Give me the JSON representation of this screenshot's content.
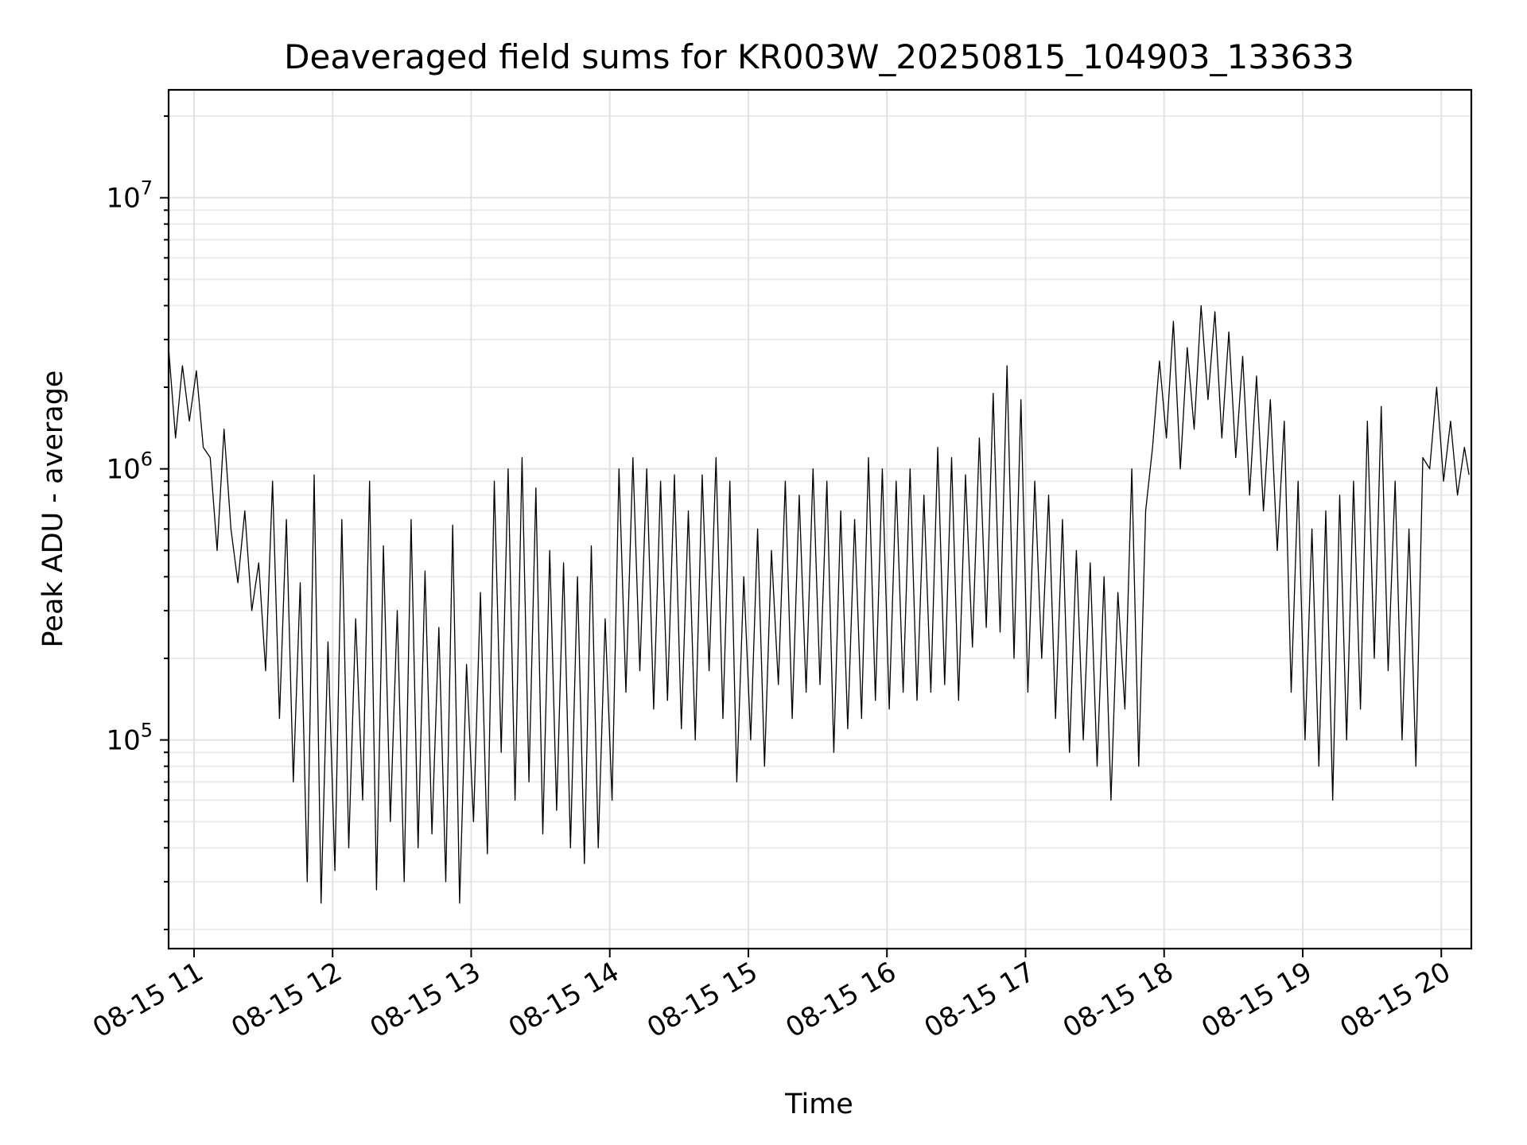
{
  "chart_data": {
    "type": "line",
    "title": "Deaveraged field sums for KR003W_20250815_104903_133633",
    "xlabel": "Time",
    "ylabel": "Peak ADU - average",
    "y_scale": "log",
    "ylim": [
      17000,
      25000000
    ],
    "xlim": [
      "2025-08-15T10:49:00",
      "2025-08-15T20:13:00"
    ],
    "grid": true,
    "x_ticks": [
      {
        "t": "2025-08-15T11:00",
        "label": "08-15 11"
      },
      {
        "t": "2025-08-15T12:00",
        "label": "08-15 12"
      },
      {
        "t": "2025-08-15T13:00",
        "label": "08-15 13"
      },
      {
        "t": "2025-08-15T14:00",
        "label": "08-15 14"
      },
      {
        "t": "2025-08-15T15:00",
        "label": "08-15 15"
      },
      {
        "t": "2025-08-15T16:00",
        "label": "08-15 16"
      },
      {
        "t": "2025-08-15T17:00",
        "label": "08-15 17"
      },
      {
        "t": "2025-08-15T18:00",
        "label": "08-15 18"
      },
      {
        "t": "2025-08-15T19:00",
        "label": "08-15 19"
      },
      {
        "t": "2025-08-15T20:00",
        "label": "08-15 20"
      }
    ],
    "y_ticks": [
      {
        "value": 100000,
        "base": "10",
        "exp": "5"
      },
      {
        "value": 1000000,
        "base": "10",
        "exp": "6"
      },
      {
        "value": 10000000,
        "base": "10",
        "exp": "7"
      }
    ],
    "series": [
      {
        "color": "#000000",
        "x": [
          "2025-08-15T10:49",
          "2025-08-15T10:52",
          "2025-08-15T10:55",
          "2025-08-15T10:58",
          "2025-08-15T11:01",
          "2025-08-15T11:04",
          "2025-08-15T11:07",
          "2025-08-15T11:10",
          "2025-08-15T11:13",
          "2025-08-15T11:16",
          "2025-08-15T11:19",
          "2025-08-15T11:22",
          "2025-08-15T11:25",
          "2025-08-15T11:28",
          "2025-08-15T11:31",
          "2025-08-15T11:34",
          "2025-08-15T11:37",
          "2025-08-15T11:40",
          "2025-08-15T11:43",
          "2025-08-15T11:46",
          "2025-08-15T11:49",
          "2025-08-15T11:52",
          "2025-08-15T11:55",
          "2025-08-15T11:58",
          "2025-08-15T12:01",
          "2025-08-15T12:04",
          "2025-08-15T12:07",
          "2025-08-15T12:10",
          "2025-08-15T12:13",
          "2025-08-15T12:16",
          "2025-08-15T12:19",
          "2025-08-15T12:22",
          "2025-08-15T12:25",
          "2025-08-15T12:28",
          "2025-08-15T12:31",
          "2025-08-15T12:34",
          "2025-08-15T12:37",
          "2025-08-15T12:40",
          "2025-08-15T12:43",
          "2025-08-15T12:46",
          "2025-08-15T12:49",
          "2025-08-15T12:52",
          "2025-08-15T12:55",
          "2025-08-15T12:58",
          "2025-08-15T13:01",
          "2025-08-15T13:04",
          "2025-08-15T13:07",
          "2025-08-15T13:10",
          "2025-08-15T13:13",
          "2025-08-15T13:16",
          "2025-08-15T13:19",
          "2025-08-15T13:22",
          "2025-08-15T13:25",
          "2025-08-15T13:28",
          "2025-08-15T13:31",
          "2025-08-15T13:34",
          "2025-08-15T13:37",
          "2025-08-15T13:40",
          "2025-08-15T13:43",
          "2025-08-15T13:46",
          "2025-08-15T13:49",
          "2025-08-15T13:52",
          "2025-08-15T13:55",
          "2025-08-15T13:58",
          "2025-08-15T14:01",
          "2025-08-15T14:04",
          "2025-08-15T14:07",
          "2025-08-15T14:10",
          "2025-08-15T14:13",
          "2025-08-15T14:16",
          "2025-08-15T14:19",
          "2025-08-15T14:22",
          "2025-08-15T14:25",
          "2025-08-15T14:28",
          "2025-08-15T14:31",
          "2025-08-15T14:34",
          "2025-08-15T14:37",
          "2025-08-15T14:40",
          "2025-08-15T14:43",
          "2025-08-15T14:46",
          "2025-08-15T14:49",
          "2025-08-15T14:52",
          "2025-08-15T14:55",
          "2025-08-15T14:58",
          "2025-08-15T15:01",
          "2025-08-15T15:04",
          "2025-08-15T15:07",
          "2025-08-15T15:10",
          "2025-08-15T15:13",
          "2025-08-15T15:16",
          "2025-08-15T15:19",
          "2025-08-15T15:22",
          "2025-08-15T15:25",
          "2025-08-15T15:28",
          "2025-08-15T15:31",
          "2025-08-15T15:34",
          "2025-08-15T15:37",
          "2025-08-15T15:40",
          "2025-08-15T15:43",
          "2025-08-15T15:46",
          "2025-08-15T15:49",
          "2025-08-15T15:52",
          "2025-08-15T15:55",
          "2025-08-15T15:58",
          "2025-08-15T16:01",
          "2025-08-15T16:04",
          "2025-08-15T16:07",
          "2025-08-15T16:10",
          "2025-08-15T16:13",
          "2025-08-15T16:16",
          "2025-08-15T16:19",
          "2025-08-15T16:22",
          "2025-08-15T16:25",
          "2025-08-15T16:28",
          "2025-08-15T16:31",
          "2025-08-15T16:34",
          "2025-08-15T16:37",
          "2025-08-15T16:40",
          "2025-08-15T16:43",
          "2025-08-15T16:46",
          "2025-08-15T16:49",
          "2025-08-15T16:52",
          "2025-08-15T16:55",
          "2025-08-15T16:58",
          "2025-08-15T17:01",
          "2025-08-15T17:04",
          "2025-08-15T17:07",
          "2025-08-15T17:10",
          "2025-08-15T17:13",
          "2025-08-15T17:16",
          "2025-08-15T17:19",
          "2025-08-15T17:22",
          "2025-08-15T17:25",
          "2025-08-15T17:28",
          "2025-08-15T17:31",
          "2025-08-15T17:34",
          "2025-08-15T17:37",
          "2025-08-15T17:40",
          "2025-08-15T17:43",
          "2025-08-15T17:46",
          "2025-08-15T17:49",
          "2025-08-15T17:52",
          "2025-08-15T17:55",
          "2025-08-15T17:58",
          "2025-08-15T18:01",
          "2025-08-15T18:04",
          "2025-08-15T18:07",
          "2025-08-15T18:10",
          "2025-08-15T18:13",
          "2025-08-15T18:16",
          "2025-08-15T18:19",
          "2025-08-15T18:22",
          "2025-08-15T18:25",
          "2025-08-15T18:28",
          "2025-08-15T18:31",
          "2025-08-15T18:34",
          "2025-08-15T18:37",
          "2025-08-15T18:40",
          "2025-08-15T18:43",
          "2025-08-15T18:46",
          "2025-08-15T18:49",
          "2025-08-15T18:52",
          "2025-08-15T18:55",
          "2025-08-15T18:58",
          "2025-08-15T19:01",
          "2025-08-15T19:04",
          "2025-08-15T19:07",
          "2025-08-15T19:10",
          "2025-08-15T19:13",
          "2025-08-15T19:16",
          "2025-08-15T19:19",
          "2025-08-15T19:22",
          "2025-08-15T19:25",
          "2025-08-15T19:28",
          "2025-08-15T19:31",
          "2025-08-15T19:34",
          "2025-08-15T19:37",
          "2025-08-15T19:40",
          "2025-08-15T19:43",
          "2025-08-15T19:46",
          "2025-08-15T19:49",
          "2025-08-15T19:52",
          "2025-08-15T19:55",
          "2025-08-15T19:58",
          "2025-08-15T20:01",
          "2025-08-15T20:04",
          "2025-08-15T20:07",
          "2025-08-15T20:10",
          "2025-08-15T20:12"
        ],
        "y": [
          2800000,
          1300000,
          2400000,
          1500000,
          2300000,
          1200000,
          1100000,
          500000,
          1400000,
          600000,
          380000,
          700000,
          300000,
          450000,
          180000,
          900000,
          120000,
          650000,
          70000,
          380000,
          30000,
          950000,
          25000,
          230000,
          33000,
          650000,
          40000,
          280000,
          60000,
          900000,
          28000,
          520000,
          50000,
          300000,
          30000,
          650000,
          40000,
          420000,
          45000,
          260000,
          30000,
          620000,
          25000,
          190000,
          50000,
          350000,
          38000,
          900000,
          90000,
          1000000,
          60000,
          1100000,
          70000,
          850000,
          45000,
          500000,
          55000,
          450000,
          40000,
          400000,
          35000,
          520000,
          40000,
          280000,
          60000,
          1000000,
          150000,
          1100000,
          180000,
          1000000,
          130000,
          900000,
          140000,
          950000,
          110000,
          700000,
          100000,
          950000,
          180000,
          1100000,
          120000,
          900000,
          70000,
          400000,
          100000,
          600000,
          80000,
          500000,
          160000,
          900000,
          120000,
          800000,
          150000,
          1000000,
          160000,
          900000,
          90000,
          700000,
          110000,
          650000,
          120000,
          1100000,
          140000,
          1000000,
          130000,
          900000,
          150000,
          1000000,
          140000,
          800000,
          150000,
          1200000,
          160000,
          1100000,
          140000,
          950000,
          220000,
          1300000,
          260000,
          1900000,
          250000,
          2400000,
          200000,
          1800000,
          150000,
          900000,
          200000,
          800000,
          120000,
          650000,
          90000,
          500000,
          100000,
          450000,
          80000,
          400000,
          60000,
          350000,
          130000,
          1000000,
          80000,
          700000,
          1200000,
          2500000,
          1300000,
          3500000,
          1000000,
          2800000,
          1400000,
          4000000,
          1800000,
          3800000,
          1300000,
          3200000,
          1100000,
          2600000,
          800000,
          2200000,
          700000,
          1800000,
          500000,
          1500000,
          150000,
          900000,
          100000,
          600000,
          80000,
          700000,
          60000,
          800000,
          100000,
          900000,
          130000,
          1500000,
          200000,
          1700000,
          180000,
          900000,
          100000,
          600000,
          80000,
          1100000,
          1000000,
          2000000,
          900000,
          1500000,
          800000,
          1200000,
          950000
        ]
      }
    ]
  }
}
